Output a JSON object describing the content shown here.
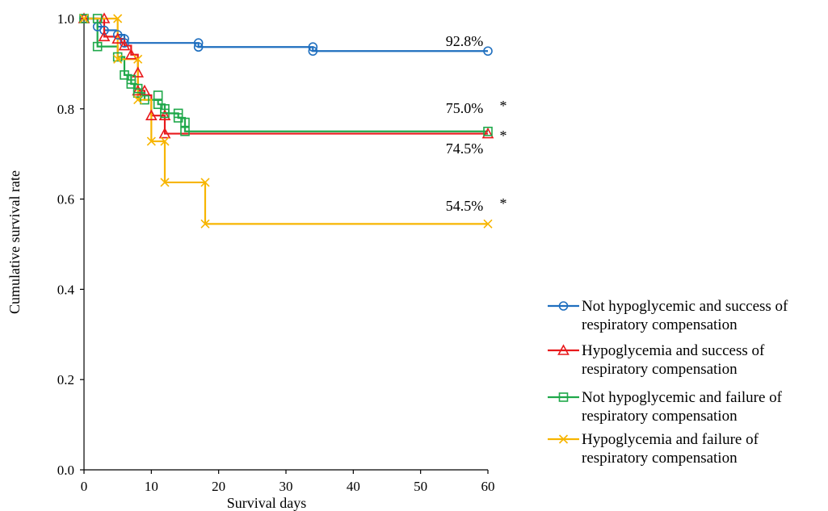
{
  "chart_data": {
    "type": "line",
    "xlabel": "Survival days",
    "ylabel": "Cumulative survival rate",
    "xlim": [
      0,
      60
    ],
    "ylim": [
      0,
      1.0
    ],
    "xticks": [
      0,
      10,
      20,
      30,
      40,
      50,
      60
    ],
    "yticks": [
      0.0,
      0.2,
      0.4,
      0.6,
      0.8,
      1.0
    ],
    "x_tick_labels": [
      "0",
      "10",
      "20",
      "30",
      "40",
      "50",
      "60"
    ],
    "y_tick_labels": [
      "0.0",
      "0.2",
      "0.4",
      "0.6",
      "0.8",
      "1.0"
    ],
    "grid": false,
    "legend_position": "bottom-right",
    "series": [
      {
        "name": "Not hypoglycemic and success of respiratory compensation",
        "legend_lines": [
          "Not hypoglycemic and success of",
          "respiratory compensation"
        ],
        "color": "#1f6fbf",
        "marker": "circle",
        "steps": [
          [
            0,
            1.0
          ],
          [
            2,
            0.982
          ],
          [
            3,
            0.974
          ],
          [
            5,
            0.964
          ],
          [
            6,
            0.946
          ],
          [
            17,
            0.937
          ],
          [
            34,
            0.928
          ],
          [
            60,
            0.928
          ]
        ],
        "markers": [
          [
            0,
            1.0
          ],
          [
            2,
            0.982
          ],
          [
            3,
            0.974
          ],
          [
            5,
            0.964
          ],
          [
            6,
            0.955
          ],
          [
            6,
            0.946
          ],
          [
            17,
            0.946
          ],
          [
            17,
            0.937
          ],
          [
            34,
            0.937
          ],
          [
            34,
            0.928
          ],
          [
            60,
            0.928
          ]
        ],
        "end_label": "92.8%",
        "significance": ""
      },
      {
        "name": "Hypoglycemia and success of respiratory compensation",
        "legend_lines": [
          "Hypoglycemia and success of",
          "respiratory compensation"
        ],
        "color": "#e8191c",
        "marker": "triangle",
        "steps": [
          [
            0,
            1.0
          ],
          [
            3,
            0.96
          ],
          [
            5,
            0.955
          ],
          [
            6,
            0.94
          ],
          [
            7,
            0.92
          ],
          [
            8,
            0.84
          ],
          [
            9,
            0.83
          ],
          [
            10,
            0.785
          ],
          [
            12,
            0.745
          ],
          [
            60,
            0.745
          ]
        ],
        "markers": [
          [
            0,
            1.0
          ],
          [
            3,
            1.0
          ],
          [
            3,
            0.96
          ],
          [
            5,
            0.955
          ],
          [
            6,
            0.94
          ],
          [
            7,
            0.92
          ],
          [
            8,
            0.88
          ],
          [
            8,
            0.84
          ],
          [
            9,
            0.84
          ],
          [
            10,
            0.785
          ],
          [
            12,
            0.785
          ],
          [
            12,
            0.745
          ],
          [
            60,
            0.745
          ]
        ],
        "end_label": "74.5%",
        "significance": "*"
      },
      {
        "name": "Not hypoglycemic and failure of respiratory compensation",
        "legend_lines": [
          "Not hypoglycemic and failure of",
          "respiratory compensation"
        ],
        "color": "#1fa84a",
        "marker": "square",
        "steps": [
          [
            0,
            1.0
          ],
          [
            2,
            0.938
          ],
          [
            5,
            0.915
          ],
          [
            6,
            0.875
          ],
          [
            7,
            0.855
          ],
          [
            8,
            0.835
          ],
          [
            9,
            0.82
          ],
          [
            11,
            0.81
          ],
          [
            12,
            0.79
          ],
          [
            14,
            0.78
          ],
          [
            15,
            0.75
          ],
          [
            60,
            0.75
          ]
        ],
        "markers": [
          [
            0,
            1.0
          ],
          [
            2,
            1.0
          ],
          [
            2,
            0.938
          ],
          [
            5,
            0.915
          ],
          [
            6,
            0.875
          ],
          [
            7,
            0.865
          ],
          [
            7,
            0.855
          ],
          [
            8,
            0.845
          ],
          [
            8,
            0.835
          ],
          [
            9,
            0.82
          ],
          [
            11,
            0.83
          ],
          [
            11,
            0.81
          ],
          [
            12,
            0.8
          ],
          [
            12,
            0.79
          ],
          [
            14,
            0.79
          ],
          [
            14,
            0.78
          ],
          [
            15,
            0.77
          ],
          [
            15,
            0.75
          ],
          [
            60,
            0.75
          ]
        ],
        "end_label": "75.0%",
        "significance": "*"
      },
      {
        "name": "Hypoglycemia and failure of respiratory compensation",
        "legend_lines": [
          "Hypoglycemia and failure of",
          "respiratory compensation"
        ],
        "color": "#f7b500",
        "marker": "x",
        "steps": [
          [
            0,
            1.0
          ],
          [
            5,
            0.91
          ],
          [
            8,
            0.82
          ],
          [
            10,
            0.728
          ],
          [
            12,
            0.637
          ],
          [
            18,
            0.545
          ],
          [
            60,
            0.545
          ]
        ],
        "markers": [
          [
            0,
            1.0
          ],
          [
            5,
            1.0
          ],
          [
            5,
            0.91
          ],
          [
            8,
            0.91
          ],
          [
            8,
            0.82
          ],
          [
            10,
            0.728
          ],
          [
            12,
            0.728
          ],
          [
            12,
            0.637
          ],
          [
            18,
            0.637
          ],
          [
            18,
            0.545
          ],
          [
            60,
            0.545
          ]
        ],
        "end_label": "54.5%",
        "significance": "*"
      }
    ]
  }
}
